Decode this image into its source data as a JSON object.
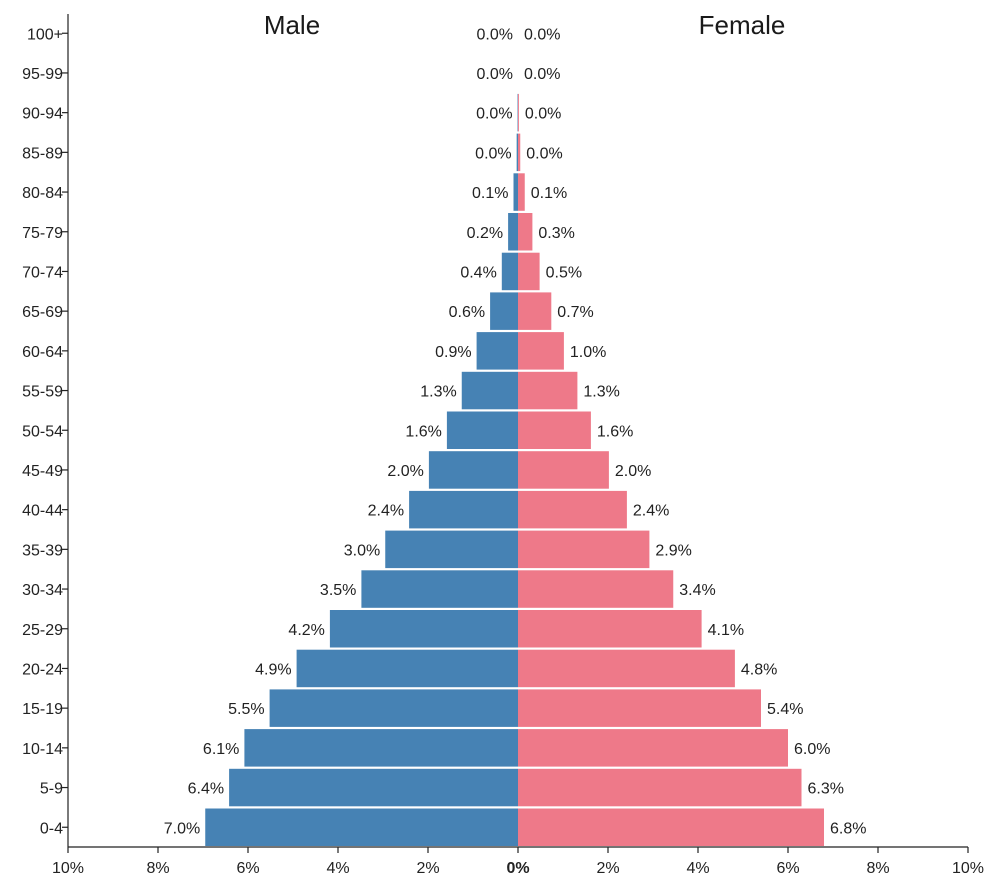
{
  "chart_data": {
    "type": "bar",
    "subtype": "population-pyramid",
    "title": "",
    "left_title": "Male",
    "right_title": "Female",
    "categories": [
      "0-4",
      "5-9",
      "10-14",
      "15-19",
      "20-24",
      "25-29",
      "30-34",
      "35-39",
      "40-44",
      "45-49",
      "50-54",
      "55-59",
      "60-64",
      "65-69",
      "70-74",
      "75-79",
      "80-84",
      "85-89",
      "90-94",
      "95-99",
      "100+"
    ],
    "series": [
      {
        "name": "Male",
        "color": "#4682b4",
        "values": [
          6.95,
          6.42,
          6.08,
          5.52,
          4.92,
          4.18,
          3.48,
          2.95,
          2.42,
          1.98,
          1.58,
          1.25,
          0.92,
          0.62,
          0.36,
          0.22,
          0.1,
          0.03,
          0.01,
          0.0,
          0.0
        ],
        "labels": [
          "7.0%",
          "6.4%",
          "6.1%",
          "5.5%",
          "4.9%",
          "4.2%",
          "3.5%",
          "3.0%",
          "2.4%",
          "2.0%",
          "1.6%",
          "1.3%",
          "0.9%",
          "0.6%",
          "0.4%",
          "0.2%",
          "0.1%",
          "0.0%",
          "0.0%",
          "0.0%",
          "0.0%"
        ]
      },
      {
        "name": "Female",
        "color": "#ee7989",
        "values": [
          6.8,
          6.3,
          6.0,
          5.4,
          4.82,
          4.08,
          3.45,
          2.92,
          2.42,
          2.02,
          1.62,
          1.32,
          1.02,
          0.74,
          0.48,
          0.32,
          0.15,
          0.05,
          0.02,
          0.0,
          0.0
        ],
        "labels": [
          "6.8%",
          "6.3%",
          "6.0%",
          "5.4%",
          "4.8%",
          "4.1%",
          "3.4%",
          "2.9%",
          "2.4%",
          "2.0%",
          "1.6%",
          "1.3%",
          "1.0%",
          "0.7%",
          "0.5%",
          "0.3%",
          "0.1%",
          "0.0%",
          "0.0%",
          "0.0%",
          "0.0%"
        ]
      }
    ],
    "x_range": [
      -10,
      10
    ],
    "x_ticks": [
      -10,
      -8,
      -6,
      -4,
      -2,
      0,
      2,
      4,
      6,
      8,
      10
    ],
    "x_tick_labels": [
      "10%",
      "8%",
      "6%",
      "4%",
      "2%",
      "0%",
      "2%",
      "4%",
      "6%",
      "8%",
      "10%"
    ],
    "grid": false
  }
}
